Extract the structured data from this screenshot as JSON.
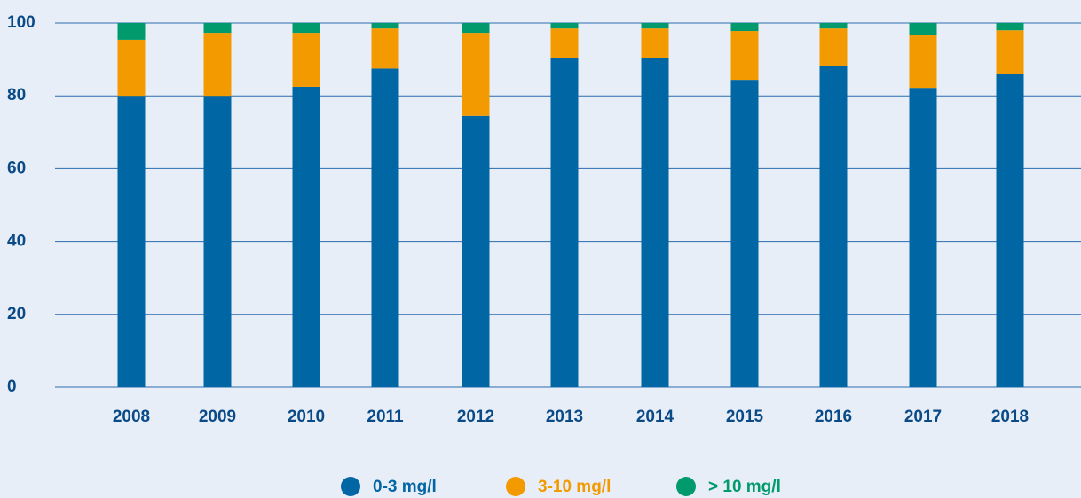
{
  "chart_data": {
    "type": "stacked_bar",
    "categories": [
      "2008",
      "2009",
      "2010",
      "2011",
      "2012",
      "2013",
      "2014",
      "2015",
      "2016",
      "2017",
      "2018"
    ],
    "series": [
      {
        "name": "0-3 mg/l",
        "color": "#0066a4",
        "values": [
          80,
          80,
          82.5,
          87.5,
          74.5,
          90.5,
          90.5,
          84.4,
          88.3,
          82.2,
          85.9
        ]
      },
      {
        "name": "3-10 mg/l",
        "color": "#f39a00",
        "values": [
          15.4,
          17.3,
          14.8,
          11,
          22.8,
          8,
          8,
          13.4,
          10.2,
          14.6,
          12.1
        ]
      },
      {
        "name": "> 10 mg/l",
        "color": "#009a6c",
        "values": [
          4.6,
          2.7,
          2.7,
          1.5,
          2.7,
          1.5,
          1.5,
          2.2,
          1.5,
          3.2,
          2
        ]
      }
    ],
    "ylim": [
      0,
      100
    ],
    "yticks": [
      0,
      20,
      40,
      60,
      80,
      100
    ],
    "grid": true
  }
}
